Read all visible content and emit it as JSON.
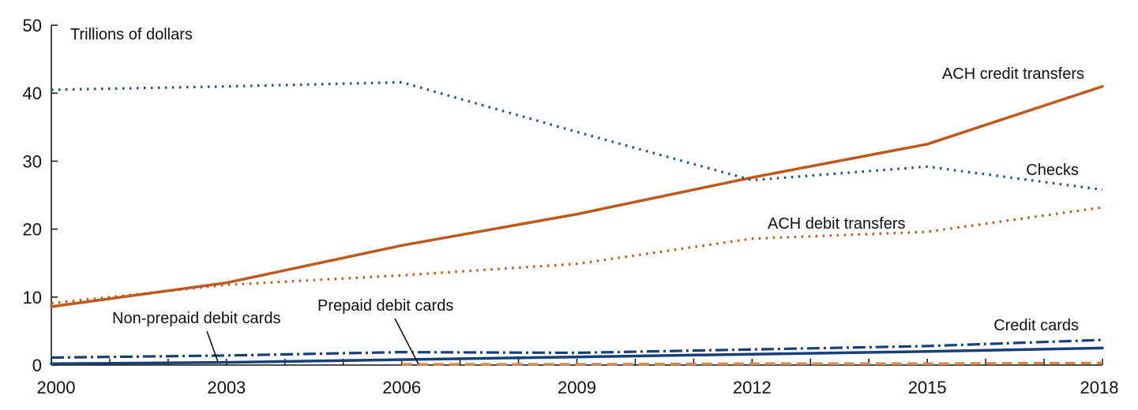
{
  "chart_data": {
    "type": "line",
    "title": "",
    "ylabel": "Trillions of dollars",
    "xlabel": "",
    "xlim": [
      2000,
      2018
    ],
    "ylim": [
      0,
      50
    ],
    "x_ticks": [
      "2000",
      "2003",
      "2006",
      "2009",
      "2012",
      "2015",
      "2018"
    ],
    "y_ticks": [
      "0",
      "10",
      "20",
      "30",
      "40",
      "50"
    ],
    "grid": false,
    "series": [
      {
        "name": "ACH credit transfers",
        "color": "#c0581b",
        "style": "solid",
        "x": [
          2000,
          2003,
          2006,
          2009,
          2012,
          2015,
          2018
        ],
        "values": [
          8.6,
          12.1,
          17.6,
          22.2,
          27.6,
          32.5,
          41.0
        ]
      },
      {
        "name": "Checks",
        "color": "#1f4e8a",
        "style": "dotted",
        "x": [
          2000,
          2003,
          2006,
          2009,
          2012,
          2015,
          2018
        ],
        "values": [
          40.5,
          41.0,
          41.6,
          34.3,
          27.2,
          29.2,
          25.8
        ]
      },
      {
        "name": "ACH debit transfers",
        "color": "#c0581b",
        "style": "dotted",
        "x": [
          2000,
          2003,
          2006,
          2009,
          2012,
          2015,
          2018
        ],
        "values": [
          9.1,
          11.8,
          13.2,
          14.9,
          18.6,
          19.6,
          23.2
        ]
      },
      {
        "name": "Credit cards",
        "color": "#17407a",
        "style": "dashdot",
        "x": [
          2000,
          2003,
          2006,
          2009,
          2012,
          2015,
          2018
        ],
        "values": [
          1.1,
          1.4,
          1.9,
          1.8,
          2.3,
          2.8,
          3.7
        ]
      },
      {
        "name": "Non-prepaid debit cards",
        "color": "#17407a",
        "style": "solid",
        "x": [
          2000,
          2003,
          2006,
          2009,
          2012,
          2015,
          2018
        ],
        "values": [
          0.2,
          0.4,
          0.8,
          1.2,
          1.6,
          2.0,
          2.5
        ]
      },
      {
        "name": "Prepaid debit cards",
        "color": "#d48a4e",
        "style": "dashed",
        "x": [
          2006,
          2009,
          2012,
          2015,
          2018
        ],
        "values": [
          0.1,
          0.1,
          0.2,
          0.2,
          0.3
        ]
      }
    ]
  }
}
